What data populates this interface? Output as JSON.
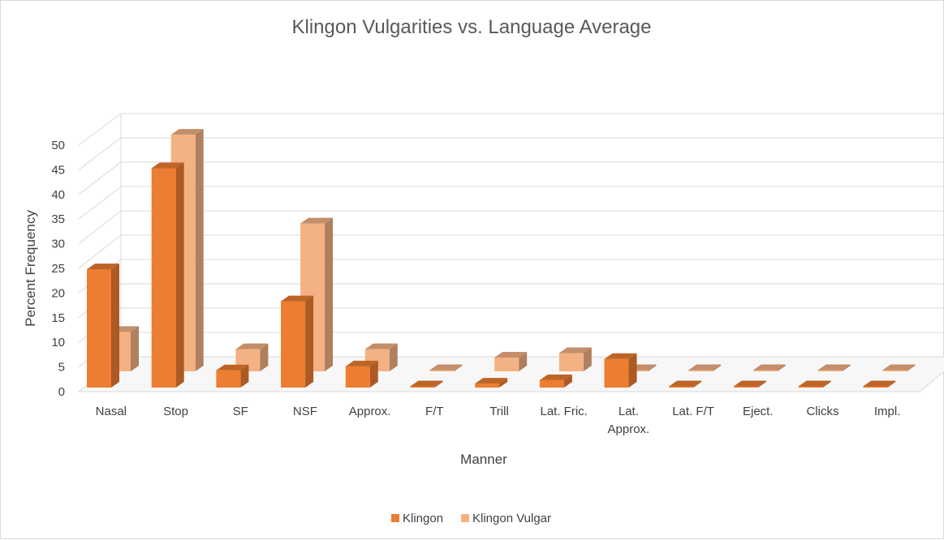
{
  "chart_data": {
    "type": "bar",
    "title": "Klingon Vulgarities vs. Language Average",
    "xlabel": "Manner",
    "ylabel": "Percent Frequency",
    "categories": [
      "Nasal",
      "Stop",
      "SF",
      "NSF",
      "Approx.",
      "F/T",
      "Trill",
      "Lat. Fric.",
      "Lat. Approx.",
      "Lat. F/T",
      "Eject.",
      "Clicks",
      "Impl."
    ],
    "category_lines": [
      [
        "Nasal"
      ],
      [
        "Stop"
      ],
      [
        "SF"
      ],
      [
        "NSF"
      ],
      [
        "Approx."
      ],
      [
        "F/T"
      ],
      [
        "Trill"
      ],
      [
        "Lat. Fric."
      ],
      [
        "Lat.",
        "Approx."
      ],
      [
        "Lat. F/T"
      ],
      [
        "Eject."
      ],
      [
        "Clicks"
      ],
      [
        "Impl."
      ]
    ],
    "series": [
      {
        "name": "Klingon",
        "color": "#ed7d31",
        "values": [
          24,
          44.5,
          3.5,
          17.5,
          4.3,
          0,
          0.8,
          1.5,
          5.8,
          0,
          0,
          0,
          0
        ]
      },
      {
        "name": "Klingon Vulgar",
        "color": "#f4b183",
        "values": [
          8,
          48,
          4.5,
          30,
          4.5,
          0,
          2.8,
          3.7,
          0,
          0,
          0,
          0,
          0
        ]
      }
    ],
    "ylim": [
      0,
      50
    ],
    "yticks": [
      "0",
      "5",
      "10",
      "15",
      "20",
      "25",
      "30",
      "35",
      "40",
      "45",
      "50"
    ],
    "grid": true,
    "style": "3d-column",
    "legend": "bottom"
  }
}
